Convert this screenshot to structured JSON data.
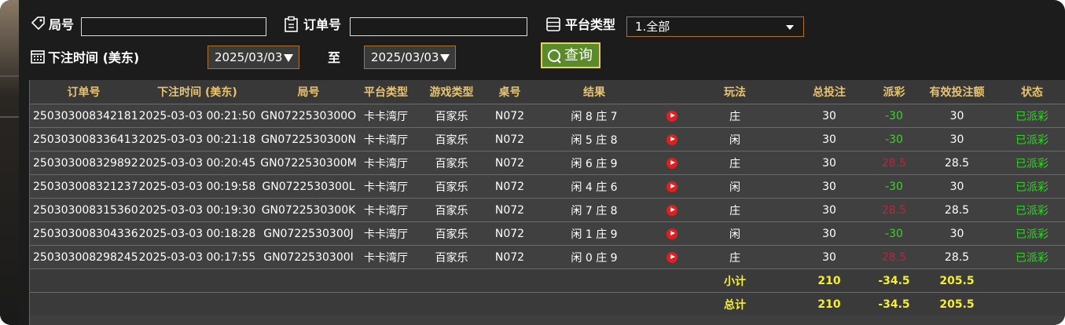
{
  "filters": {
    "round_label": "局号",
    "order_label": "订单号",
    "platform_label": "平台类型",
    "platform_value": "1.全部",
    "time_label": "下注时间 (美东)",
    "date_from": "2025/03/03",
    "to_label": "至",
    "date_to": "2025/03/03",
    "query_button": "查询"
  },
  "table": {
    "headers": [
      "订单号",
      "下注时间 (美东)",
      "局号",
      "平台类型",
      "游戏类型",
      "桌号",
      "结果",
      "玩法",
      "总投注",
      "派彩",
      "有效投注额",
      "状态"
    ],
    "rows": [
      [
        "250303008342181",
        "2025-03-03 00:21:50",
        "GN0722530300O",
        "卡卡湾厅",
        "百家乐",
        "N072",
        "闲 8 庄 7",
        "庄",
        30,
        -30,
        30,
        "已派彩"
      ],
      [
        "250303008336413",
        "2025-03-03 00:21:18",
        "GN0722530300N",
        "卡卡湾厅",
        "百家乐",
        "N072",
        "闲 5 庄 8",
        "闲",
        30,
        -30,
        30,
        "已派彩"
      ],
      [
        "250303008329892",
        "2025-03-03 00:20:45",
        "GN0722530300M",
        "卡卡湾厅",
        "百家乐",
        "N072",
        "闲 6 庄 9",
        "庄",
        30,
        28.5,
        28.5,
        "已派彩"
      ],
      [
        "250303008321237",
        "2025-03-03 00:19:58",
        "GN0722530300L",
        "卡卡湾厅",
        "百家乐",
        "N072",
        "闲 4 庄 6",
        "闲",
        30,
        -30,
        30,
        "已派彩"
      ],
      [
        "250303008315360",
        "2025-03-03 00:19:30",
        "GN0722530300K",
        "卡卡湾厅",
        "百家乐",
        "N072",
        "闲 7 庄 8",
        "庄",
        30,
        28.5,
        28.5,
        "已派彩"
      ],
      [
        "250303008304336",
        "2025-03-03 00:18:28",
        "GN0722530300J",
        "卡卡湾厅",
        "百家乐",
        "N072",
        "闲 1 庄 9",
        "闲",
        30,
        -30,
        30,
        "已派彩"
      ],
      [
        "250303008298245",
        "2025-03-03 00:17:55",
        "GN0722530300I",
        "卡卡湾厅",
        "百家乐",
        "N072",
        "闲 0 庄 9",
        "庄",
        30,
        28.5,
        28.5,
        "已派彩"
      ]
    ],
    "summary": [
      {
        "label": "小计",
        "total_bet": 210,
        "payout": -34.5,
        "valid_bet": 205.5
      },
      {
        "label": "总计",
        "total_bet": 210,
        "payout": -34.5,
        "valid_bet": 205.5
      }
    ]
  }
}
